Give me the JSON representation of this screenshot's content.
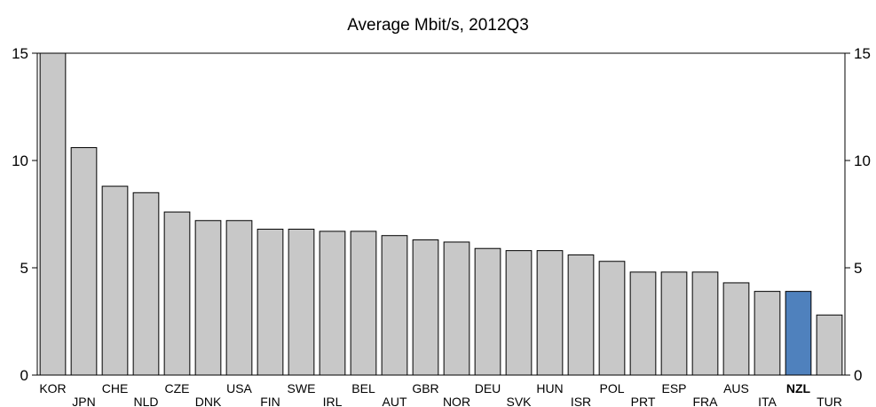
{
  "chart_data": {
    "type": "bar",
    "title": "Average Mbit/s, 2012Q3",
    "xlabel": "",
    "ylabel": "",
    "ylim": [
      0,
      15
    ],
    "yticks": [
      0,
      5,
      10,
      15
    ],
    "grid": false,
    "categories": [
      "KOR",
      "JPN",
      "CHE",
      "NLD",
      "CZE",
      "DNK",
      "USA",
      "FIN",
      "SWE",
      "IRL",
      "BEL",
      "AUT",
      "GBR",
      "NOR",
      "DEU",
      "SVK",
      "HUN",
      "ISR",
      "POL",
      "PRT",
      "ESP",
      "FRA",
      "AUS",
      "ITA",
      "NZL",
      "TUR"
    ],
    "values": [
      15.0,
      10.6,
      8.8,
      8.5,
      7.6,
      7.2,
      7.2,
      6.8,
      6.8,
      6.7,
      6.7,
      6.5,
      6.3,
      6.2,
      5.9,
      5.8,
      5.8,
      5.6,
      5.3,
      4.8,
      4.8,
      4.8,
      4.3,
      3.9,
      3.9,
      2.8
    ],
    "highlight": "NZL",
    "colors": {
      "bar": "#c8c8c8",
      "highlight": "#4f81bd",
      "outline": "#000000"
    }
  }
}
